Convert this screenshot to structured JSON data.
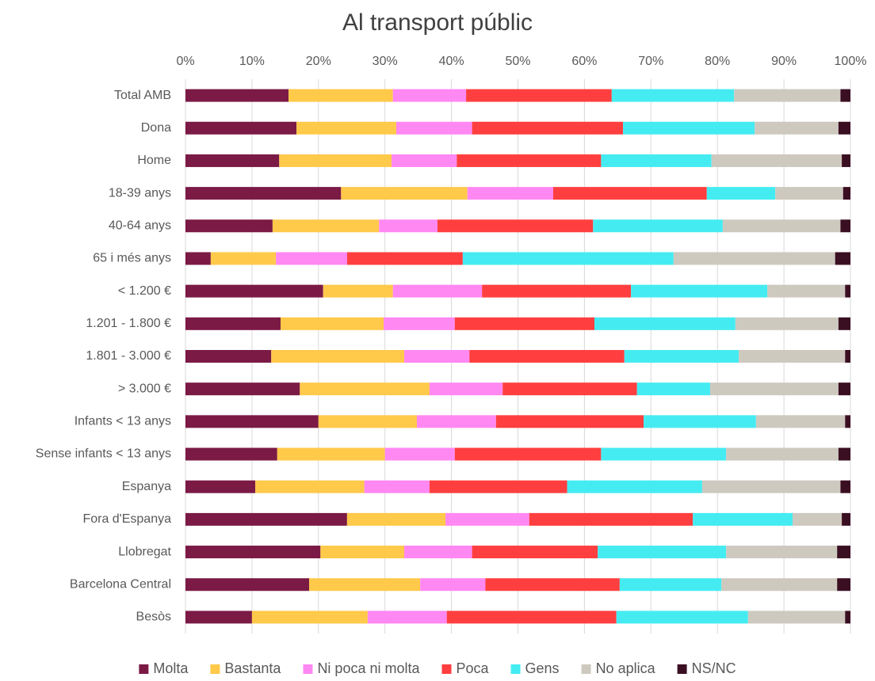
{
  "chart_data": {
    "type": "bar",
    "orientation": "horizontal",
    "stacked": true,
    "title": "Al transport públic",
    "categories": [
      "Total AMB",
      "Dona",
      "Home",
      "18-39 anys",
      "40-64 anys",
      "65 i més anys",
      "< 1.200 €",
      "1.201 - 1.800 €",
      "1.801 - 3.000 €",
      "> 3.000 €",
      "Infants < 13 anys",
      "Sense infants < 13 anys",
      "Espanya",
      "Fora d'Espanya",
      "Llobregat",
      "Barcelona Central",
      "Besòs"
    ],
    "series": [
      {
        "name": "Molta",
        "color": "#7b1a45",
        "values": [
          15.5,
          16.7,
          14.1,
          23.4,
          13.1,
          3.8,
          20.7,
          14.3,
          12.9,
          17.2,
          20.0,
          13.8,
          10.5,
          24.3,
          20.3,
          18.6,
          10.0
        ]
      },
      {
        "name": "Bastanta",
        "color": "#ffc94a",
        "values": [
          15.7,
          15.0,
          16.9,
          19.0,
          16.0,
          9.8,
          10.5,
          15.5,
          20.0,
          19.5,
          14.8,
          16.2,
          16.4,
          14.8,
          12.6,
          16.7,
          17.4
        ]
      },
      {
        "name": "Ni poca ni molta",
        "color": "#ff88f3",
        "values": [
          11.0,
          11.4,
          9.8,
          12.9,
          8.8,
          10.7,
          13.4,
          10.7,
          9.8,
          11.0,
          11.9,
          10.5,
          9.8,
          12.6,
          10.2,
          9.8,
          11.9
        ]
      },
      {
        "name": "Poca",
        "color": "#ff3f3f",
        "values": [
          21.9,
          22.7,
          21.7,
          23.1,
          23.4,
          17.4,
          22.4,
          21.0,
          23.3,
          20.2,
          22.2,
          22.0,
          20.7,
          24.6,
          18.9,
          20.2,
          25.5
        ]
      },
      {
        "name": "Gens",
        "color": "#44ecf2",
        "values": [
          18.4,
          19.8,
          16.6,
          10.3,
          19.5,
          31.7,
          20.5,
          21.2,
          17.2,
          11.0,
          16.9,
          18.8,
          20.3,
          15.0,
          19.3,
          15.3,
          19.8
        ]
      },
      {
        "name": "No aplica",
        "color": "#cec9bf",
        "values": [
          16.0,
          12.6,
          19.6,
          10.2,
          17.7,
          24.3,
          11.7,
          15.5,
          16.0,
          19.3,
          13.4,
          16.9,
          20.8,
          7.4,
          16.7,
          17.4,
          14.6
        ]
      },
      {
        "name": "NS/NC",
        "color": "#3b0f22",
        "values": [
          1.5,
          1.8,
          1.3,
          1.1,
          1.5,
          2.3,
          0.8,
          1.8,
          0.8,
          1.8,
          0.8,
          1.8,
          1.5,
          1.3,
          2.0,
          2.0,
          0.8
        ]
      }
    ],
    "xlim": [
      0,
      100
    ],
    "xticks": [
      {
        "value": 0,
        "label": "0%"
      },
      {
        "value": 10,
        "label": "10%"
      },
      {
        "value": 20,
        "label": "20%"
      },
      {
        "value": 30,
        "label": "30%"
      },
      {
        "value": 40,
        "label": "40%"
      },
      {
        "value": 50,
        "label": "50%"
      },
      {
        "value": 60,
        "label": "60%"
      },
      {
        "value": 70,
        "label": "70%"
      },
      {
        "value": 80,
        "label": "80%"
      },
      {
        "value": 90,
        "label": "90%"
      },
      {
        "value": 100,
        "label": "100%"
      }
    ],
    "grid": true,
    "legend": "bottom"
  }
}
